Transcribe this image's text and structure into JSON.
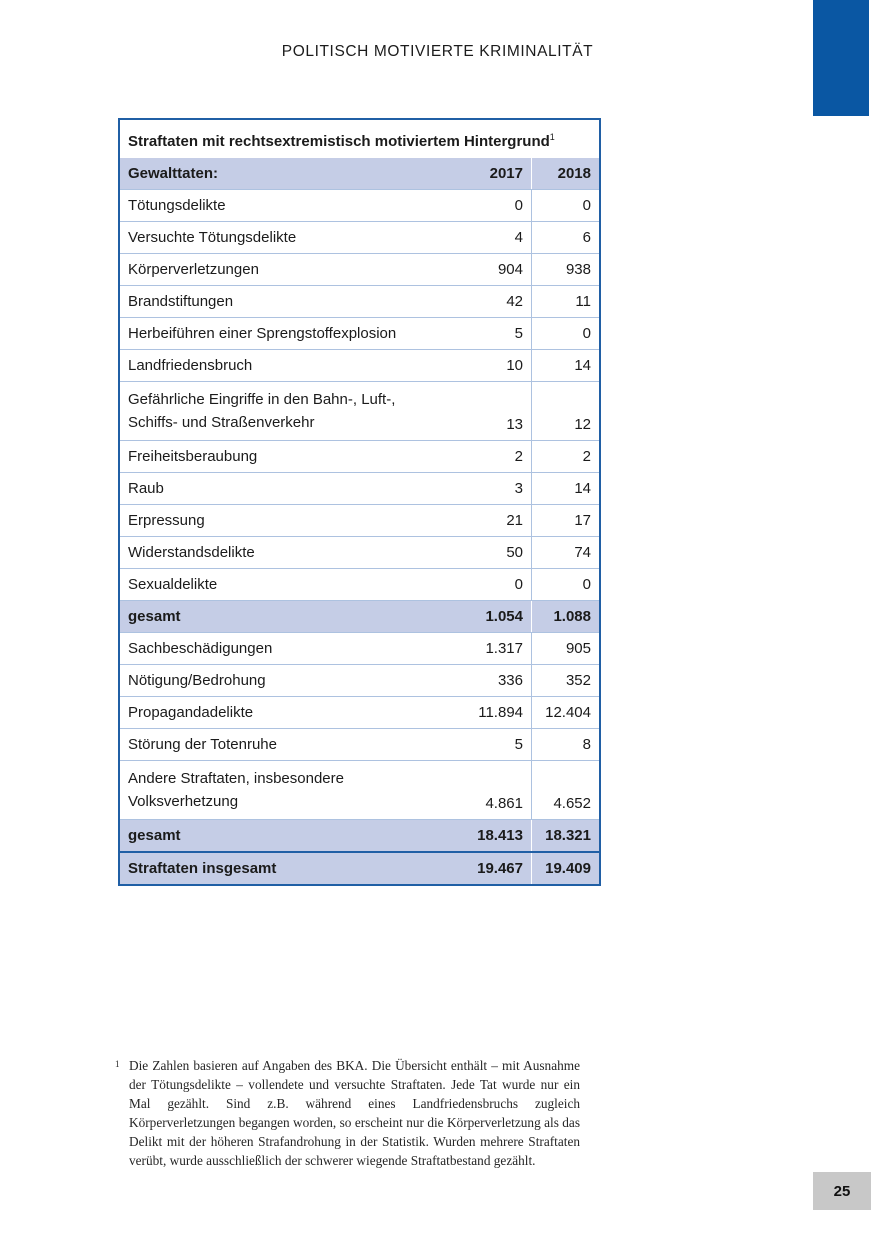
{
  "page": {
    "header_title": "POLITISCH MOTIVIERTE KRIMINALITÄT",
    "page_number": "25"
  },
  "colors": {
    "accent_blue": "#0a57a3",
    "table_border_blue": "#205fa5",
    "row_highlight_blue": "#c5cde6",
    "row_separator_blue": "#adc2e0",
    "page_number_box_gray": "#c8c8c8"
  },
  "table": {
    "title": "Straftaten mit rechtsextremistisch motiviertem Hintergrund",
    "title_superscript": "1",
    "header": {
      "label": "Gewalttaten:",
      "year1": "2017",
      "year2": "2018"
    },
    "rows": [
      {
        "label": "Tötungsdelikte",
        "y2017": "0",
        "y2018": "0",
        "style": "normal"
      },
      {
        "label": "Versuchte Tötungsdelikte",
        "y2017": "4",
        "y2018": "6",
        "style": "normal"
      },
      {
        "label": "Körperverletzungen",
        "y2017": "904",
        "y2018": "938",
        "style": "normal"
      },
      {
        "label": "Brandstiftungen",
        "y2017": "42",
        "y2018": "11",
        "style": "normal"
      },
      {
        "label": "Herbeiführen einer Sprengstoffexplosion",
        "y2017": "5",
        "y2018": "0",
        "style": "normal"
      },
      {
        "label": "Landfriedensbruch",
        "y2017": "10",
        "y2018": "14",
        "style": "normal"
      },
      {
        "label": "Gefährliche Eingriffe in den Bahn-, Luft-,\nSchiffs- und Straßenverkehr",
        "y2017": "13",
        "y2018": "12",
        "style": "normal"
      },
      {
        "label": "Freiheitsberaubung",
        "y2017": "2",
        "y2018": "2",
        "style": "normal"
      },
      {
        "label": "Raub",
        "y2017": "3",
        "y2018": "14",
        "style": "normal"
      },
      {
        "label": "Erpressung",
        "y2017": "21",
        "y2018": "17",
        "style": "normal"
      },
      {
        "label": "Widerstandsdelikte",
        "y2017": "50",
        "y2018": "74",
        "style": "normal"
      },
      {
        "label": "Sexualdelikte",
        "y2017": "0",
        "y2018": "0",
        "style": "normal"
      },
      {
        "label": "gesamt",
        "y2017": "1.054",
        "y2018": "1.088",
        "style": "subtotal"
      },
      {
        "label": "Sachbeschädigungen",
        "y2017": "1.317",
        "y2018": "905",
        "style": "normal"
      },
      {
        "label": "Nötigung/Bedrohung",
        "y2017": "336",
        "y2018": "352",
        "style": "normal"
      },
      {
        "label": "Propagandadelikte",
        "y2017": "11.894",
        "y2018": "12.404",
        "style": "normal"
      },
      {
        "label": "Störung der Totenruhe",
        "y2017": "5",
        "y2018": "8",
        "style": "normal"
      },
      {
        "label": "Andere Straftaten, insbesondere\nVolksverhetzung",
        "y2017": "4.861",
        "y2018": "4.652",
        "style": "normal"
      },
      {
        "label": "gesamt",
        "y2017": "18.413",
        "y2018": "18.321",
        "style": "subtotal"
      },
      {
        "label": "Straftaten insgesamt",
        "y2017": "19.467",
        "y2018": "19.409",
        "style": "total"
      }
    ]
  },
  "footnote": {
    "marker": "1",
    "text": "Die Zahlen basieren auf Angaben des BKA. Die Übersicht enthält – mit Ausnahme der Tötungsdelikte – vollendete und versuchte Straftaten. Jede Tat wurde nur ein Mal gezählt. Sind z.B. während eines Landfriedensbruchs zugleich Körperverletzungen begangen worden, so erscheint nur die Körperverletzung als das Delikt mit der höheren Strafandrohung in der Statistik. Wurden mehrere Straftaten verübt, wurde ausschließlich der schwerer wiegende Straftatbestand gezählt."
  }
}
